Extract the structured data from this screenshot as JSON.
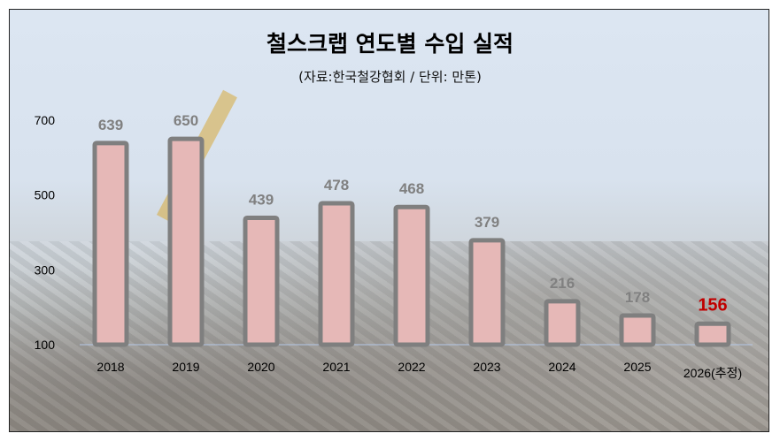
{
  "chart_data": {
    "type": "bar",
    "title": "철스크랩 연도별 수입 실적",
    "subtitle": "(자료:한국철강협회 / 단위: 만톤)",
    "categories": [
      "2018",
      "2019",
      "2020",
      "2021",
      "2022",
      "2023",
      "2024",
      "2025",
      "2026(추정)"
    ],
    "values": [
      639,
      650,
      439,
      478,
      468,
      379,
      216,
      178,
      156
    ],
    "ylim": [
      100,
      700
    ],
    "yticks": [
      "100",
      "300",
      "500",
      "700"
    ],
    "grid": false,
    "colors": {
      "bar_fill": "#e6b8b7",
      "bar_edge": "#7f7f7f",
      "label": "#808080",
      "highlight_label": "#c00000"
    },
    "highlight_index": 8
  }
}
